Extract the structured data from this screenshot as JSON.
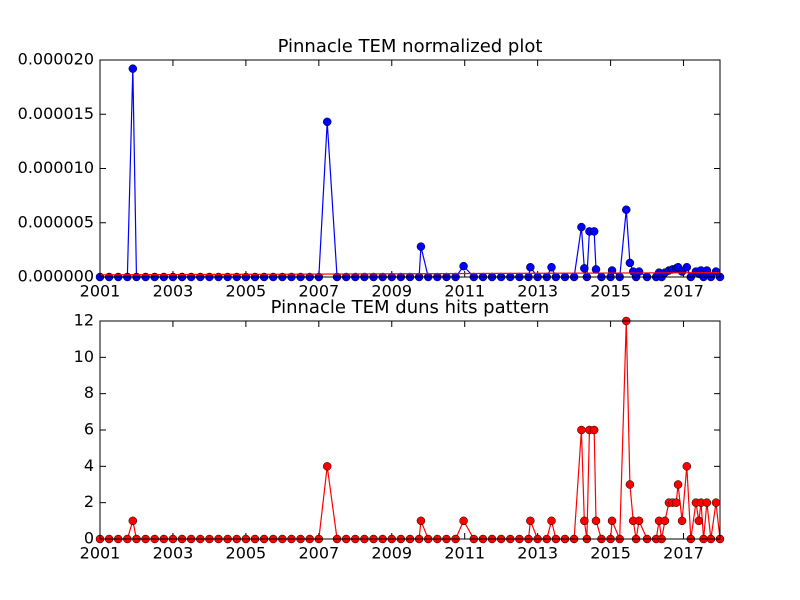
{
  "chart_data": [
    {
      "type": "line",
      "title": "Pinnacle TEM normalized plot",
      "x": [
        2001,
        2001.25,
        2001.5,
        2001.75,
        2001.9,
        2002,
        2002.25,
        2002.5,
        2002.75,
        2003,
        2003.25,
        2003.5,
        2003.75,
        2004,
        2004.25,
        2004.5,
        2004.75,
        2005,
        2005.25,
        2005.5,
        2005.75,
        2006,
        2006.25,
        2006.5,
        2006.75,
        2007,
        2007.23,
        2007.5,
        2007.75,
        2008,
        2008.25,
        2008.5,
        2008.75,
        2009,
        2009.25,
        2009.5,
        2009.75,
        2009.8,
        2010,
        2010.25,
        2010.5,
        2010.75,
        2010.97,
        2011.25,
        2011.5,
        2011.75,
        2012,
        2012.25,
        2012.5,
        2012.75,
        2012.8,
        2013,
        2013.25,
        2013.38,
        2013.5,
        2013.75,
        2014,
        2014.2,
        2014.28,
        2014.35,
        2014.42,
        2014.55,
        2014.6,
        2014.75,
        2015,
        2015.04,
        2015.25,
        2015.43,
        2015.53,
        2015.62,
        2015.7,
        2015.78,
        2016,
        2016.25,
        2016.33,
        2016.4,
        2016.49,
        2016.6,
        2016.7,
        2016.8,
        2016.85,
        2016.96,
        2017.09,
        2017.2,
        2017.34,
        2017.42,
        2017.48,
        2017.55,
        2017.64,
        2017.75,
        2017.89,
        2018
      ],
      "series": [
        {
          "color": "#0000ff",
          "values": [
            0,
            0,
            0,
            0,
            1.92e-05,
            0,
            0,
            0,
            0,
            0,
            0,
            0,
            0,
            0,
            0,
            0,
            0,
            0,
            0,
            0,
            0,
            0,
            0,
            0,
            0,
            0,
            1.43e-05,
            0,
            0,
            0,
            0,
            0,
            0,
            0,
            0,
            0,
            0,
            2.8e-06,
            0,
            0,
            0,
            0,
            1e-06,
            0,
            0,
            0,
            0,
            0,
            0,
            0,
            9e-07,
            0,
            0,
            9e-07,
            0,
            0,
            0,
            4.6e-06,
            8e-07,
            0,
            4.2e-06,
            4.2e-06,
            7e-07,
            0,
            0,
            6e-07,
            0,
            6.2e-06,
            1.3e-06,
            5e-07,
            0,
            5e-07,
            0,
            0,
            4e-07,
            0,
            4e-07,
            6e-07,
            7e-07,
            8e-07,
            9e-07,
            5e-07,
            9e-07,
            0,
            5e-07,
            3e-07,
            6e-07,
            0,
            6e-07,
            0,
            5e-07,
            0
          ]
        }
      ],
      "trend": {
        "color": "#ff0000",
        "x": [
          2001,
          2018
        ],
        "values": [
          2e-07,
          4e-07
        ]
      },
      "xlim": [
        2001,
        2018
      ],
      "xticks": [
        2001,
        2003,
        2005,
        2007,
        2009,
        2011,
        2013,
        2015,
        2017
      ],
      "ylim": [
        0,
        2e-05
      ],
      "yticks": [
        {
          "value": 0,
          "label": "0.000000"
        },
        {
          "value": 5e-06,
          "label": "0.000005"
        },
        {
          "value": 1e-05,
          "label": "0.000010"
        },
        {
          "value": 1.5e-05,
          "label": "0.000015"
        },
        {
          "value": 2e-05,
          "label": "0.000020"
        }
      ]
    },
    {
      "type": "line",
      "title": "Pinnacle TEM duns hits pattern",
      "x": [
        2001,
        2001.25,
        2001.5,
        2001.75,
        2001.9,
        2002,
        2002.25,
        2002.5,
        2002.75,
        2003,
        2003.25,
        2003.5,
        2003.75,
        2004,
        2004.25,
        2004.5,
        2004.75,
        2005,
        2005.25,
        2005.5,
        2005.75,
        2006,
        2006.25,
        2006.5,
        2006.75,
        2007,
        2007.23,
        2007.5,
        2007.75,
        2008,
        2008.25,
        2008.5,
        2008.75,
        2009,
        2009.25,
        2009.5,
        2009.75,
        2009.8,
        2010,
        2010.25,
        2010.5,
        2010.75,
        2010.97,
        2011.25,
        2011.5,
        2011.75,
        2012,
        2012.25,
        2012.5,
        2012.75,
        2012.8,
        2013,
        2013.25,
        2013.38,
        2013.5,
        2013.75,
        2014,
        2014.2,
        2014.28,
        2014.35,
        2014.42,
        2014.55,
        2014.6,
        2014.75,
        2015,
        2015.04,
        2015.25,
        2015.43,
        2015.53,
        2015.62,
        2015.7,
        2015.78,
        2016,
        2016.25,
        2016.33,
        2016.4,
        2016.49,
        2016.6,
        2016.7,
        2016.8,
        2016.85,
        2016.96,
        2017.09,
        2017.2,
        2017.34,
        2017.42,
        2017.48,
        2017.55,
        2017.64,
        2017.75,
        2017.89,
        2018
      ],
      "series": [
        {
          "color": "#ff0000",
          "values": [
            0,
            0,
            0,
            0,
            1,
            0,
            0,
            0,
            0,
            0,
            0,
            0,
            0,
            0,
            0,
            0,
            0,
            0,
            0,
            0,
            0,
            0,
            0,
            0,
            0,
            0,
            4,
            0,
            0,
            0,
            0,
            0,
            0,
            0,
            0,
            0,
            0,
            1,
            0,
            0,
            0,
            0,
            1,
            0,
            0,
            0,
            0,
            0,
            0,
            0,
            1,
            0,
            0,
            1,
            0,
            0,
            0,
            6,
            1,
            0,
            6,
            6,
            1,
            0,
            0,
            1,
            0,
            12,
            3,
            1,
            0,
            1,
            0,
            0,
            1,
            0,
            1,
            2,
            2,
            2,
            3,
            1,
            4,
            0,
            2,
            1,
            2,
            0,
            2,
            0,
            2,
            0
          ]
        }
      ],
      "xlim": [
        2001,
        2018
      ],
      "xticks": [
        2001,
        2003,
        2005,
        2007,
        2009,
        2011,
        2013,
        2015,
        2017
      ],
      "ylim": [
        0,
        12
      ],
      "yticks": [
        0,
        2,
        4,
        6,
        8,
        10,
        12
      ]
    }
  ]
}
